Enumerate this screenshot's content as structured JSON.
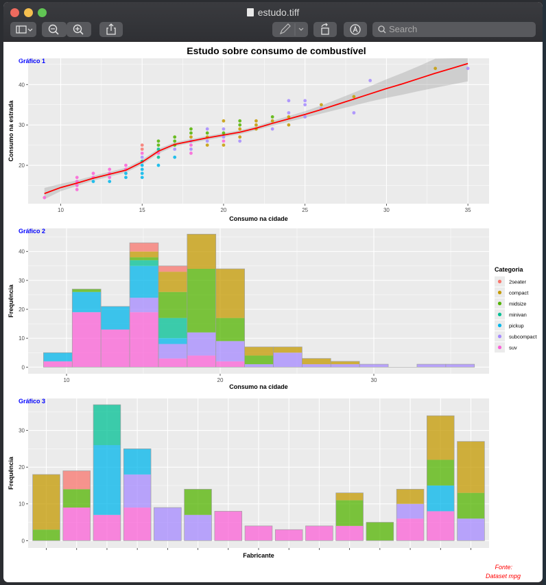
{
  "window": {
    "title": "estudo.tiff",
    "search_placeholder": "Search",
    "colors": {
      "close": "#ed6a5e",
      "minimize": "#f5bf4f",
      "zoom": "#61c554"
    }
  },
  "toolbar": {
    "icons": [
      "sidebar-icon",
      "zoom-out-icon",
      "zoom-in-icon",
      "share-icon",
      "markup-pen-icon",
      "rotate-icon",
      "annotate-icon",
      "search-icon"
    ]
  },
  "figure": {
    "title": "Estudo sobre consumo de combustível",
    "source_line1": "Fonte:",
    "source_line2": "Dataset mpg"
  },
  "chart_data": [
    {
      "type": "scatter",
      "panel_label": "Gráfico 1",
      "xlabel": "Consumo na cidade",
      "ylabel": "Consumo na estrada",
      "xlim": [
        8,
        36.3
      ],
      "ylim": [
        10.5,
        46.5
      ],
      "xticks": [
        10,
        15,
        20,
        25,
        30,
        35
      ],
      "yticks": [
        20,
        30,
        40
      ],
      "grid": true,
      "series_colors": {
        "2seater": "#F8766D",
        "compact": "#C49A00",
        "midsize": "#53B400",
        "minivan": "#00C094",
        "pickup": "#00B6EB",
        "subcompact": "#A58AFF",
        "suv": "#FB61D7"
      },
      "points": [
        [
          9,
          12,
          "suv"
        ],
        [
          11,
          14,
          "suv"
        ],
        [
          11,
          15,
          "suv"
        ],
        [
          11,
          16,
          "suv"
        ],
        [
          11,
          17,
          "suv"
        ],
        [
          12,
          16,
          "pickup"
        ],
        [
          12,
          17,
          "suv"
        ],
        [
          12,
          18,
          "suv"
        ],
        [
          13,
          16,
          "pickup"
        ],
        [
          13,
          17,
          "suv"
        ],
        [
          13,
          18,
          "suv"
        ],
        [
          13,
          19,
          "suv"
        ],
        [
          14,
          17,
          "pickup"
        ],
        [
          14,
          18,
          "pickup"
        ],
        [
          14,
          19,
          "suv"
        ],
        [
          14,
          20,
          "suv"
        ],
        [
          15,
          17,
          "pickup"
        ],
        [
          15,
          18,
          "pickup"
        ],
        [
          15,
          19,
          "pickup"
        ],
        [
          15,
          20,
          "pickup"
        ],
        [
          15,
          21,
          "minivan"
        ],
        [
          15,
          22,
          "subcompact"
        ],
        [
          15,
          23,
          "suv"
        ],
        [
          15,
          24,
          "2seater"
        ],
        [
          15,
          25,
          "2seater"
        ],
        [
          16,
          20,
          "pickup"
        ],
        [
          16,
          22,
          "minivan"
        ],
        [
          16,
          23,
          "suv"
        ],
        [
          16,
          24,
          "minivan"
        ],
        [
          16,
          25,
          "midsize"
        ],
        [
          16,
          26,
          "midsize"
        ],
        [
          17,
          22,
          "pickup"
        ],
        [
          17,
          24,
          "subcompact"
        ],
        [
          17,
          25,
          "midsize"
        ],
        [
          17,
          26,
          "midsize"
        ],
        [
          17,
          27,
          "midsize"
        ],
        [
          18,
          23,
          "suv"
        ],
        [
          18,
          24,
          "subcompact"
        ],
        [
          18,
          25,
          "suv"
        ],
        [
          18,
          26,
          "subcompact"
        ],
        [
          18,
          27,
          "compact"
        ],
        [
          18,
          28,
          "midsize"
        ],
        [
          18,
          29,
          "midsize"
        ],
        [
          19,
          25,
          "compact"
        ],
        [
          19,
          26,
          "subcompact"
        ],
        [
          19,
          27,
          "compact"
        ],
        [
          19,
          28,
          "midsize"
        ],
        [
          19,
          29,
          "subcompact"
        ],
        [
          20,
          25,
          "compact"
        ],
        [
          20,
          26,
          "suv"
        ],
        [
          20,
          27,
          "subcompact"
        ],
        [
          20,
          28,
          "midsize"
        ],
        [
          20,
          29,
          "subcompact"
        ],
        [
          20,
          31,
          "compact"
        ],
        [
          21,
          26,
          "subcompact"
        ],
        [
          21,
          27,
          "compact"
        ],
        [
          21,
          29,
          "compact"
        ],
        [
          21,
          30,
          "midsize"
        ],
        [
          21,
          31,
          "midsize"
        ],
        [
          22,
          29,
          "compact"
        ],
        [
          22,
          30,
          "compact"
        ],
        [
          22,
          31,
          "compact"
        ],
        [
          23,
          29,
          "subcompact"
        ],
        [
          23,
          31,
          "compact"
        ],
        [
          23,
          32,
          "midsize"
        ],
        [
          24,
          30,
          "compact"
        ],
        [
          24,
          32,
          "compact"
        ],
        [
          24,
          33,
          "subcompact"
        ],
        [
          24,
          36,
          "subcompact"
        ],
        [
          25,
          32,
          "subcompact"
        ],
        [
          25,
          35,
          "subcompact"
        ],
        [
          25,
          36,
          "subcompact"
        ],
        [
          26,
          34,
          "subcompact"
        ],
        [
          26,
          35,
          "compact"
        ],
        [
          28,
          33,
          "subcompact"
        ],
        [
          28,
          37,
          "compact"
        ],
        [
          29,
          41,
          "subcompact"
        ],
        [
          33,
          44,
          "compact"
        ],
        [
          35,
          44,
          "subcompact"
        ]
      ],
      "smooth_line": [
        [
          9,
          13
        ],
        [
          10,
          14.5
        ],
        [
          11,
          15.6
        ],
        [
          12,
          16.8
        ],
        [
          13,
          17.8
        ],
        [
          14,
          18.8
        ],
        [
          15,
          20.8
        ],
        [
          16,
          23.5
        ],
        [
          17,
          25.2
        ],
        [
          18,
          26
        ],
        [
          19,
          26.8
        ],
        [
          20,
          27.5
        ],
        [
          21,
          28.2
        ],
        [
          22,
          29.2
        ],
        [
          23,
          30.4
        ],
        [
          24,
          31.5
        ],
        [
          25,
          32.6
        ],
        [
          26,
          33.8
        ],
        [
          27,
          35.1
        ],
        [
          28,
          36.4
        ],
        [
          29,
          37.7
        ],
        [
          30,
          39
        ],
        [
          31,
          40.2
        ],
        [
          32,
          41.5
        ],
        [
          33,
          42.8
        ],
        [
          34,
          44
        ],
        [
          35,
          45.2
        ]
      ],
      "smooth_band": [
        [
          9,
          11.6,
          14.4
        ],
        [
          10,
          13.6,
          15.4
        ],
        [
          11,
          14.9,
          16.3
        ],
        [
          12,
          16.2,
          17.4
        ],
        [
          13,
          17.2,
          18.4
        ],
        [
          14,
          18.2,
          19.4
        ],
        [
          15,
          20.2,
          21.4
        ],
        [
          16,
          22.9,
          24.1
        ],
        [
          17,
          24.7,
          25.7
        ],
        [
          18,
          25.5,
          26.5
        ],
        [
          19,
          26.3,
          27.3
        ],
        [
          20,
          27,
          28
        ],
        [
          21,
          27.7,
          28.7
        ],
        [
          22,
          28.7,
          29.7
        ],
        [
          23,
          29.8,
          31
        ],
        [
          24,
          30.8,
          32.2
        ],
        [
          25,
          31.8,
          33.4
        ],
        [
          26,
          32.8,
          34.8
        ],
        [
          27,
          33.8,
          36.4
        ],
        [
          28,
          34.8,
          38
        ],
        [
          29,
          35.8,
          39.6
        ],
        [
          30,
          36.7,
          41.3
        ],
        [
          31,
          37.5,
          42.9
        ],
        [
          32,
          38.4,
          44.6
        ],
        [
          33,
          39.2,
          46.4
        ],
        [
          34,
          40,
          48
        ],
        [
          35,
          40.8,
          49.6
        ]
      ]
    },
    {
      "type": "bar",
      "subtype": "stacked-histogram",
      "panel_label": "Gráfico 2",
      "xlabel": "Consumo na cidade",
      "ylabel": "Frequência",
      "xlim": [
        7.5,
        37.5
      ],
      "ylim": [
        -2.3,
        48
      ],
      "xticks": [
        10,
        20,
        30
      ],
      "yticks": [
        0,
        10,
        20,
        30,
        40
      ],
      "bin_edges": [
        8.5,
        10.37,
        12.24,
        14.11,
        15.98,
        17.85,
        19.72,
        21.59,
        23.46,
        25.33,
        27.2,
        29.07,
        30.94,
        32.81,
        34.68,
        36.55
      ],
      "legend_title": "Categoria",
      "legend_position": "right",
      "series": [
        {
          "name": "suv",
          "color": "#FB61D7",
          "values": [
            2,
            19,
            13,
            19,
            3,
            4,
            2,
            0,
            0,
            0,
            0,
            0,
            0,
            0,
            0
          ]
        },
        {
          "name": "subcompact",
          "color": "#A58AFF",
          "values": [
            0,
            0,
            0,
            5,
            5,
            8,
            7,
            1,
            5,
            1,
            1,
            1,
            0,
            1,
            1
          ]
        },
        {
          "name": "pickup",
          "color": "#00B6EB",
          "values": [
            3,
            7,
            8,
            11,
            2,
            0,
            0,
            0,
            0,
            0,
            0,
            0,
            0,
            0,
            0
          ]
        },
        {
          "name": "minivan",
          "color": "#00C094",
          "values": [
            0,
            0,
            0,
            2,
            7,
            0,
            0,
            0,
            0,
            0,
            0,
            0,
            0,
            0,
            0
          ]
        },
        {
          "name": "midsize",
          "color": "#53B400",
          "values": [
            0,
            1,
            0,
            1,
            9,
            22,
            8,
            3,
            0,
            0,
            0,
            0,
            0,
            0,
            0
          ]
        },
        {
          "name": "compact",
          "color": "#C49A00",
          "values": [
            0,
            0,
            0,
            2,
            7,
            12,
            17,
            3,
            2,
            2,
            1,
            0,
            0,
            0,
            0
          ]
        },
        {
          "name": "2seater",
          "color": "#F8766D",
          "values": [
            0,
            0,
            0,
            3,
            2,
            0,
            0,
            0,
            0,
            0,
            0,
            0,
            0,
            0,
            0
          ]
        }
      ]
    },
    {
      "type": "bar",
      "subtype": "stacked",
      "panel_label": "Gráfico 3",
      "xlabel": "Fabricante",
      "ylabel": "Frequência",
      "ylim": [
        -2,
        38.7
      ],
      "yticks": [
        0,
        10,
        20,
        30
      ],
      "categories": [
        "",
        "",
        "",
        "",
        "",
        "",
        "",
        "",
        "",
        "",
        "",
        "",
        "",
        "",
        ""
      ],
      "series": [
        {
          "name": "suv",
          "color": "#FB61D7",
          "values": [
            0,
            9,
            7,
            9,
            0,
            0,
            8,
            4,
            3,
            4,
            4,
            0,
            6,
            8,
            0
          ]
        },
        {
          "name": "subcompact",
          "color": "#A58AFF",
          "values": [
            0,
            0,
            0,
            9,
            9,
            7,
            0,
            0,
            0,
            0,
            0,
            0,
            4,
            0,
            6
          ]
        },
        {
          "name": "pickup",
          "color": "#00B6EB",
          "values": [
            0,
            0,
            19,
            7,
            0,
            0,
            0,
            0,
            0,
            0,
            0,
            0,
            0,
            7,
            0
          ]
        },
        {
          "name": "minivan",
          "color": "#00C094",
          "values": [
            0,
            0,
            11,
            0,
            0,
            0,
            0,
            0,
            0,
            0,
            0,
            0,
            0,
            0,
            0
          ]
        },
        {
          "name": "midsize",
          "color": "#53B400",
          "values": [
            3,
            5,
            0,
            0,
            0,
            7,
            0,
            0,
            0,
            0,
            7,
            5,
            0,
            7,
            7
          ]
        },
        {
          "name": "compact",
          "color": "#C49A00",
          "values": [
            15,
            0,
            0,
            0,
            0,
            0,
            0,
            0,
            0,
            0,
            2,
            0,
            4,
            12,
            14
          ]
        },
        {
          "name": "2seater",
          "color": "#F8766D",
          "values": [
            0,
            5,
            0,
            0,
            0,
            0,
            0,
            0,
            0,
            0,
            0,
            0,
            0,
            0,
            0
          ]
        }
      ]
    }
  ]
}
